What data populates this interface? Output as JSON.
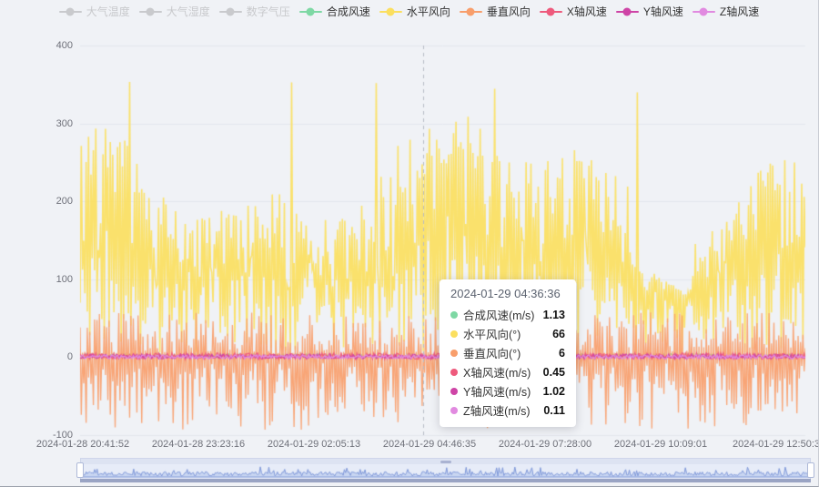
{
  "page": {
    "background": "#f0f2f6",
    "gridline_color": "#e3e6ed",
    "axis_text_color": "#6e7079"
  },
  "tooltip": {
    "title": "2024-01-29 04:36:36",
    "rows": [
      {
        "label": "合成风速(m/s)",
        "value": "1.13",
        "color": "#7ed8a4"
      },
      {
        "label": "水平风向(°)",
        "value": "66",
        "color": "#fbdf5f"
      },
      {
        "label": "垂直风向(°)",
        "value": "6",
        "color": "#f89e6b"
      },
      {
        "label": "X轴风速(m/s)",
        "value": "0.45",
        "color": "#ee5a7c"
      },
      {
        "label": "Y轴风速(m/s)",
        "value": "1.02",
        "color": "#ce44a6"
      },
      {
        "label": "Z轴风速(m/s)",
        "value": "0.11",
        "color": "#e18ae0"
      }
    ]
  },
  "chart_data": {
    "type": "line",
    "title": "",
    "xlabel": "",
    "ylabel": "",
    "ylim": [
      -100,
      400
    ],
    "y_ticks": [
      400,
      300,
      200,
      100,
      0,
      -100
    ],
    "x_ticks": [
      "2024-01-28 20:41:52",
      "2024-01-28 23:23:16",
      "2024-01-29 02:05:13",
      "2024-01-29 04:46:35",
      "2024-01-29 07:28:00",
      "2024-01-29 10:09:01",
      "2024-01-29 12:50:3"
    ],
    "grid": true,
    "legend_position": "top",
    "axis_pointer": {
      "time": "2024-01-29 04:36:36",
      "x_fraction": 0.473,
      "style": "dashed"
    },
    "series": [
      {
        "name": "大气温度",
        "active": false,
        "color": "#c9cacd"
      },
      {
        "name": "大气湿度",
        "active": false,
        "color": "#c9cacd"
      },
      {
        "name": "数字气压",
        "active": false,
        "color": "#c9cacd"
      },
      {
        "name": "合成风速",
        "unit": "m/s",
        "active": true,
        "color": "#7ed8a4",
        "profile": "flat-zero",
        "approx_range": [
          0,
          3
        ],
        "base": 2,
        "amp": 5,
        "seed": 21,
        "value_at_cursor": 1.13
      },
      {
        "name": "水平风向",
        "unit": "°",
        "active": true,
        "color": "#fbdf5f",
        "profile": "spikes-up",
        "approx_range": [
          0,
          356
        ],
        "seed": 11,
        "value_at_cursor": 66
      },
      {
        "name": "垂直风向",
        "unit": "°",
        "active": true,
        "color": "#f89e6b",
        "profile": "oscillate-zero",
        "approx_range": [
          -97,
          62
        ],
        "seed": 31,
        "value_at_cursor": 6
      },
      {
        "name": "X轴风速",
        "unit": "m/s",
        "active": true,
        "color": "#ee5a7c",
        "profile": "flat-zero",
        "approx_range": [
          0,
          2
        ],
        "base": 1.5,
        "amp": 8,
        "seed": 41,
        "value_at_cursor": 0.45
      },
      {
        "name": "Y轴风速",
        "unit": "m/s",
        "active": true,
        "color": "#ce44a6",
        "profile": "flat-zero",
        "approx_range": [
          0,
          2
        ],
        "base": 1,
        "amp": 6,
        "seed": 51,
        "value_at_cursor": 1.02
      },
      {
        "name": "Z轴风速",
        "unit": "m/s",
        "active": true,
        "color": "#e18ae0",
        "profile": "flat-zero",
        "approx_range": [
          0,
          1
        ],
        "base": 0.5,
        "amp": 5,
        "seed": 61,
        "value_at_cursor": 0.11
      }
    ]
  },
  "datazoom": {
    "range": "100%",
    "shadow_line_color": "#7e97d8",
    "shadow_fill_color": "#c9d6f1",
    "seed": 71
  }
}
